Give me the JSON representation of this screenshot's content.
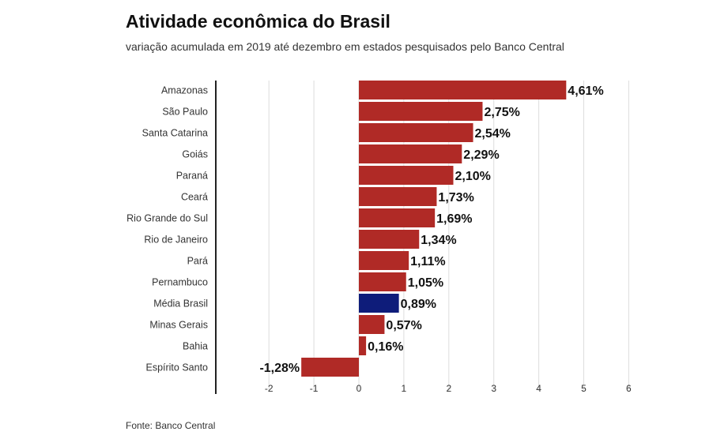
{
  "header": {
    "title": "Atividade econômica do Brasil",
    "subtitle": "variação acumulada em 2019 até dezembro em estados pesquisados pelo Banco Central"
  },
  "footer": {
    "source": "Fonte: Banco Central"
  },
  "chart_data": {
    "type": "bar",
    "orientation": "horizontal",
    "title": "Atividade econômica do Brasil",
    "subtitle": "variação acumulada em 2019 até dezembro em estados pesquisados pelo Banco Central",
    "categories": [
      "Amazonas",
      "São Paulo",
      "Santa Catarina",
      "Goiás",
      "Paraná",
      "Ceará",
      "Rio Grande do Sul",
      "Rio de Janeiro",
      "Pará",
      "Pernambuco",
      "Média Brasil",
      "Minas Gerais",
      "Bahia",
      "Espírito Santo"
    ],
    "values": [
      4.61,
      2.75,
      2.54,
      2.29,
      2.1,
      1.73,
      1.69,
      1.34,
      1.11,
      1.05,
      0.89,
      0.57,
      0.16,
      -1.28
    ],
    "value_labels": [
      "4,61%",
      "2,75%",
      "2,54%",
      "2,29%",
      "2,10%",
      "1,73%",
      "1,69%",
      "1,34%",
      "1,11%",
      "1,05%",
      "0,89%",
      "0,57%",
      "0,16%",
      "-1,28%"
    ],
    "highlight_category": "Média Brasil",
    "xlim": [
      -2.5,
      6
    ],
    "xticks": [
      -2,
      -1,
      0,
      1,
      2,
      3,
      4,
      5,
      6
    ],
    "xtick_labels": [
      "-2",
      "-1",
      "0",
      "1",
      "2",
      "3",
      "4",
      "5",
      "6"
    ],
    "grid": true,
    "colors": {
      "bar": "#b02a26",
      "highlight": "#0e1c7a",
      "grid": "#dddddd",
      "axis": "#222222"
    }
  }
}
